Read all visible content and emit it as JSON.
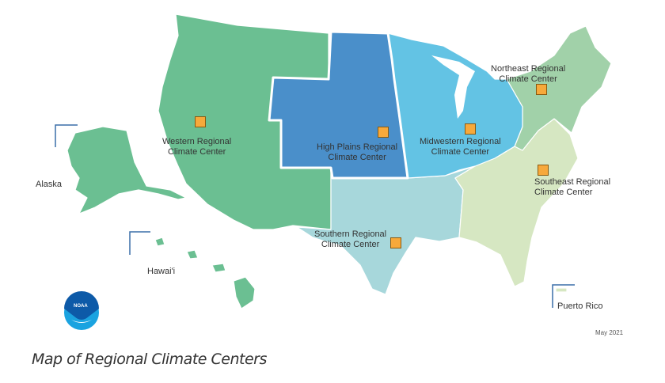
{
  "title": "Map of Regional Climate Centers",
  "date": "May 2021",
  "logo_text": "NOAA",
  "insets": {
    "alaska": "Alaska",
    "hawaii": "Hawai'i",
    "puerto_rico": "Puerto Rico"
  },
  "regions": [
    {
      "id": "western",
      "line1": "Western Regional",
      "line2": "Climate Center",
      "color": "#6bbf92"
    },
    {
      "id": "high-plains",
      "line1": "High Plains Regional",
      "line2": "Climate Center",
      "color": "#4a8fca"
    },
    {
      "id": "midwestern",
      "line1": "Midwestern Regional",
      "line2": "Climate Center",
      "color": "#63c3e4"
    },
    {
      "id": "northeast",
      "line1": "Northeast Regional",
      "line2": "Climate Center",
      "color": "#a1d1a9"
    },
    {
      "id": "southeast",
      "line1": "Southeast Regional",
      "line2": "Climate Center",
      "color": "#d6e7c2"
    },
    {
      "id": "southern",
      "line1": "Southern Regional",
      "line2": "Climate Center",
      "color": "#a7d7db"
    }
  ],
  "marker_color": "#f7a93b"
}
